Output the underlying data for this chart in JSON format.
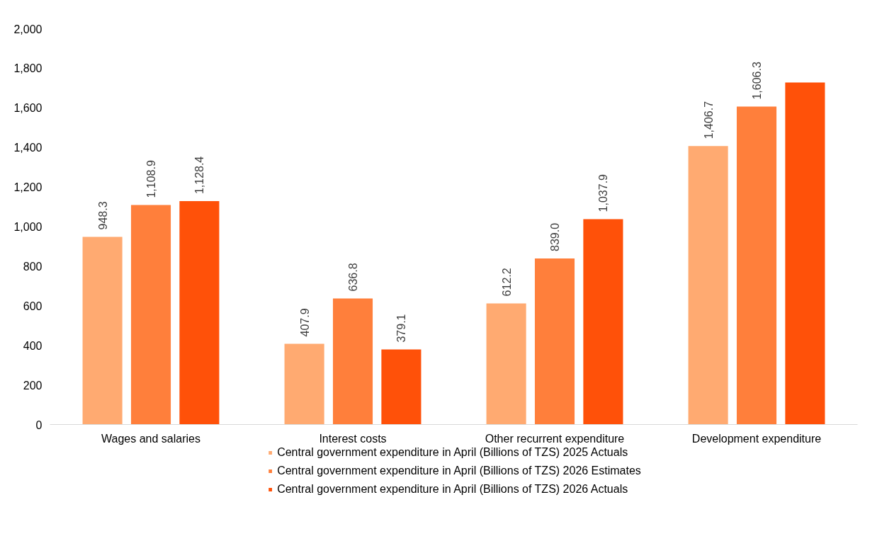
{
  "chart_data": {
    "type": "bar",
    "categories": [
      "Wages and salaries",
      "Interest costs",
      "Other recurrent expenditure",
      "Development expenditure"
    ],
    "series": [
      {
        "name": "Central government expenditure in April (Billions of TZS) 2025 Actuals",
        "color": "#ffaa71",
        "values": [
          948.3,
          407.9,
          612.2,
          1406.7
        ],
        "value_labels": [
          "948.3",
          "407.9",
          "612.2",
          "1,406.7"
        ]
      },
      {
        "name": "Central government expenditure in April (Billions of TZS) 2026 Estimates",
        "color": "#ff7f3b",
        "values": [
          1108.9,
          636.8,
          839.0,
          1606.3
        ],
        "value_labels": [
          "1,108.9",
          "636.8",
          "839.0",
          "1,606.3"
        ]
      },
      {
        "name": "Central government expenditure in April (Billions of TZS) 2026 Actuals",
        "color": "#ff5109",
        "values": [
          1128.4,
          379.1,
          1037.9,
          1728
        ],
        "value_labels": [
          "1,128.4",
          "379.1",
          "1,037.9",
          null
        ]
      }
    ],
    "ylim": [
      0,
      2000
    ],
    "yticks": [
      {
        "value": 0,
        "label": "0"
      },
      {
        "value": 200,
        "label": "200"
      },
      {
        "value": 400,
        "label": "400"
      },
      {
        "value": 600,
        "label": "600"
      },
      {
        "value": 800,
        "label": "800"
      },
      {
        "value": 1000,
        "label": "1,000"
      },
      {
        "value": 1200,
        "label": "1,200"
      },
      {
        "value": 1400,
        "label": "1,400"
      },
      {
        "value": 1600,
        "label": "1,600"
      },
      {
        "value": 1800,
        "label": "1,800"
      },
      {
        "value": 2000,
        "label": "2,000"
      }
    ],
    "grid": false,
    "legend": "bottom"
  }
}
